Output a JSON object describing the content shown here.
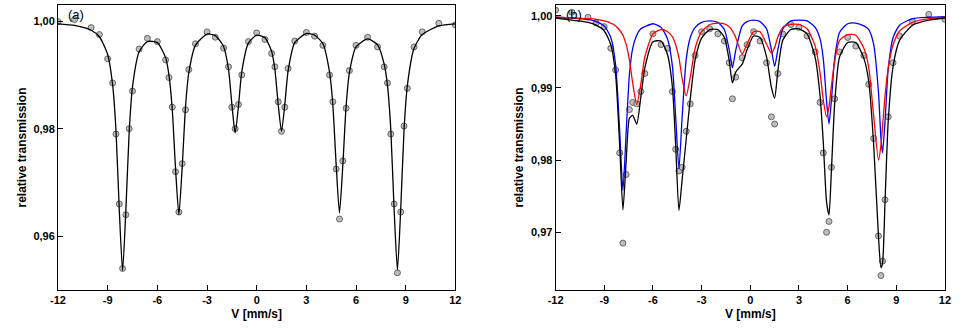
{
  "chart_data": [
    {
      "type": "scatter",
      "annotations": [
        "(a)"
      ],
      "x_label": "V [mm/s]",
      "y_label": "relative transmission",
      "xlim": [
        -12,
        12
      ],
      "xticks": [
        -12,
        -9,
        -6,
        -3,
        0,
        3,
        6,
        9,
        12
      ],
      "ylim": [
        0.95,
        1.003
      ],
      "yticks": [
        {
          "value": 0.96,
          "label": "0,96"
        },
        {
          "value": 0.98,
          "label": "0,98"
        },
        {
          "value": 1.0,
          "label": "1,00"
        }
      ],
      "series": [
        {
          "type": "scatter",
          "marker": "circle",
          "color": "#bdbdbd",
          "x": [
            -12,
            -11,
            -10,
            -9.5,
            -9,
            -8.7,
            -8.5,
            -8.3,
            -8.1,
            -7.9,
            -7.7,
            -7.5,
            -7.1,
            -6.6,
            -6,
            -5.5,
            -5.3,
            -5.1,
            -4.9,
            -4.7,
            -4.5,
            -4.3,
            -4.1,
            -3.7,
            -3,
            -2.5,
            -2,
            -1.7,
            -1.5,
            -1.3,
            -1.1,
            -0.9,
            -0.5,
            0,
            0.5,
            0.9,
            1.1,
            1.3,
            1.5,
            1.7,
            1.9,
            2.3,
            3,
            3.5,
            4,
            4.4,
            4.6,
            4.8,
            5.0,
            5.2,
            5.4,
            5.6,
            6,
            6.7,
            7.3,
            7.7,
            7.9,
            8.1,
            8.3,
            8.5,
            8.7,
            8.9,
            9.1,
            9.5,
            10,
            11,
            12
          ],
          "values": [
            0.9999,
            1.0003,
            0.9988,
            0.9975,
            0.993,
            0.9885,
            0.979,
            0.966,
            0.954,
            0.964,
            0.98,
            0.987,
            0.9948,
            0.9968,
            0.9962,
            0.9928,
            0.9895,
            0.984,
            0.972,
            0.9645,
            0.9735,
            0.9835,
            0.991,
            0.9958,
            0.998,
            0.997,
            0.995,
            0.9915,
            0.984,
            0.98,
            0.9845,
            0.99,
            0.9962,
            0.9978,
            0.9966,
            0.994,
            0.9915,
            0.985,
            0.9795,
            0.984,
            0.9912,
            0.9963,
            0.9979,
            0.9972,
            0.9955,
            0.99,
            0.985,
            0.9725,
            0.9632,
            0.974,
            0.9838,
            0.9908,
            0.9955,
            0.997,
            0.9952,
            0.9915,
            0.9885,
            0.979,
            0.966,
            0.9532,
            0.9645,
            0.9805,
            0.9875,
            0.9952,
            0.998,
            0.9996,
            0.9993
          ]
        },
        {
          "type": "line",
          "line_style": "solid",
          "color": "#000000",
          "x": [
            -12,
            -11,
            -10,
            -9.5,
            -9,
            -8.7,
            -8.5,
            -8.3,
            -8.1,
            -7.9,
            -7.7,
            -7.5,
            -7.1,
            -6.6,
            -6,
            -5.5,
            -5.3,
            -5.1,
            -4.9,
            -4.7,
            -4.5,
            -4.3,
            -4.1,
            -3.7,
            -3,
            -2.5,
            -2,
            -1.7,
            -1.5,
            -1.3,
            -1.1,
            -0.9,
            -0.5,
            0,
            0.5,
            0.9,
            1.1,
            1.3,
            1.5,
            1.7,
            1.9,
            2.3,
            3,
            3.5,
            4,
            4.4,
            4.6,
            4.8,
            5.0,
            5.2,
            5.4,
            5.6,
            6,
            6.7,
            7.3,
            7.7,
            7.9,
            8.1,
            8.3,
            8.5,
            8.7,
            8.9,
            9.1,
            9.5,
            10,
            11,
            12
          ],
          "values": [
            0.9995,
            0.9992,
            0.9983,
            0.9971,
            0.9938,
            0.9881,
            0.9798,
            0.965,
            0.9536,
            0.9649,
            0.9795,
            0.9878,
            0.9943,
            0.9962,
            0.996,
            0.9932,
            0.99,
            0.9836,
            0.9725,
            0.964,
            0.9728,
            0.984,
            0.9904,
            0.9955,
            0.9976,
            0.9973,
            0.9953,
            0.991,
            0.9846,
            0.9792,
            0.9842,
            0.9906,
            0.9959,
            0.9974,
            0.9969,
            0.9944,
            0.991,
            0.9845,
            0.9795,
            0.9846,
            0.9908,
            0.996,
            0.9977,
            0.9974,
            0.9958,
            0.9905,
            0.9844,
            0.9733,
            0.9643,
            0.9731,
            0.9842,
            0.9904,
            0.9952,
            0.9967,
            0.9956,
            0.992,
            0.988,
            0.9798,
            0.965,
            0.9537,
            0.9651,
            0.9798,
            0.988,
            0.9949,
            0.9975,
            0.9991,
            0.9995
          ]
        }
      ]
    },
    {
      "type": "scatter",
      "annotations": [
        "(b)"
      ],
      "x_label": "V [mm/s]",
      "y_label": "relative transmission",
      "xlim": [
        -12,
        12
      ],
      "xticks": [
        -12,
        -9,
        -6,
        -3,
        0,
        3,
        6,
        9,
        12
      ],
      "ylim": [
        0.962,
        1.0015
      ],
      "yticks": [
        {
          "value": 0.97,
          "label": "0,97"
        },
        {
          "value": 0.98,
          "label": "0,98"
        },
        {
          "value": 0.99,
          "label": "0,99"
        },
        {
          "value": 1.0,
          "label": "1,00"
        }
      ],
      "series": [
        {
          "type": "scatter",
          "marker": "circle",
          "color": "#bdbdbd",
          "x": [
            -12,
            -11,
            -10,
            -9.5,
            -9,
            -8.6,
            -8.3,
            -8.05,
            -7.85,
            -7.65,
            -7.45,
            -7.25,
            -7.0,
            -6.75,
            -6.5,
            -6,
            -5.5,
            -5.1,
            -4.8,
            -4.6,
            -4.4,
            -4.2,
            -3.95,
            -3.7,
            -3.4,
            -3,
            -2.5,
            -2,
            -1.6,
            -1.3,
            -1.1,
            -0.9,
            -0.5,
            -0.2,
            0.2,
            0.6,
            1.0,
            1.3,
            1.5,
            1.7,
            2.0,
            2.5,
            3,
            3.5,
            4,
            4.3,
            4.5,
            4.7,
            4.85,
            5.0,
            5.2,
            5.5,
            6,
            6.5,
            7,
            7.3,
            7.6,
            7.9,
            8.05,
            8.15,
            8.3,
            8.5,
            8.8,
            9.2,
            10,
            11,
            12
          ],
          "values": [
            1.0008,
            1.0005,
            0.9998,
            0.999,
            0.9985,
            0.9955,
            0.9925,
            0.981,
            0.9685,
            0.978,
            0.987,
            0.988,
            0.9878,
            0.9895,
            0.992,
            0.9975,
            0.996,
            0.9955,
            0.9895,
            0.9815,
            0.9785,
            0.979,
            0.984,
            0.9878,
            0.9945,
            0.9978,
            0.9982,
            0.9975,
            0.9965,
            0.9935,
            0.9885,
            0.9915,
            0.9942,
            0.996,
            0.9978,
            0.9965,
            0.9935,
            0.986,
            0.985,
            0.992,
            0.9975,
            0.9988,
            0.9984,
            0.9972,
            0.995,
            0.988,
            0.981,
            0.97,
            0.9715,
            0.979,
            0.9885,
            0.995,
            0.997,
            0.9958,
            0.9945,
            0.9905,
            0.983,
            0.9695,
            0.964,
            0.966,
            0.9745,
            0.986,
            0.9935,
            0.9972,
            0.9992,
            1.0002,
            0.9995
          ]
        },
        {
          "type": "line",
          "line_style": "solid",
          "color": "#0000ff",
          "x": [
            -12,
            -11,
            -10,
            -9.5,
            -9,
            -8.6,
            -8.3,
            -8.05,
            -7.85,
            -7.65,
            -7.45,
            -7.25,
            -7.0,
            -6.75,
            -6.5,
            -6,
            -5.5,
            -5.1,
            -4.8,
            -4.6,
            -4.4,
            -4.2,
            -3.95,
            -3.7,
            -3.4,
            -3,
            -2.5,
            -2,
            -1.6,
            -1.3,
            -1.1,
            -0.9,
            -0.5,
            -0.2,
            0.2,
            0.6,
            1.0,
            1.3,
            1.5,
            1.7,
            2.0,
            2.5,
            3,
            3.5,
            4,
            4.3,
            4.5,
            4.7,
            4.85,
            5.0,
            5.2,
            5.5,
            6,
            6.5,
            7,
            7.3,
            7.6,
            7.9,
            8.05,
            8.15,
            8.3,
            8.5,
            8.8,
            9.2,
            10,
            11,
            12
          ],
          "values": [
            0.9998,
            0.9997,
            0.9995,
            0.9992,
            0.9986,
            0.997,
            0.9932,
            0.984,
            0.9758,
            0.9839,
            0.9919,
            0.9955,
            0.9973,
            0.9982,
            0.9985,
            0.9989,
            0.9984,
            0.9968,
            0.993,
            0.986,
            0.9788,
            0.986,
            0.994,
            0.997,
            0.9984,
            0.9991,
            0.9993,
            0.9991,
            0.9981,
            0.9953,
            0.9928,
            0.9952,
            0.9986,
            0.9992,
            0.9994,
            0.9992,
            0.9982,
            0.9953,
            0.993,
            0.9953,
            0.9982,
            0.9993,
            0.9994,
            0.9993,
            0.9984,
            0.9968,
            0.994,
            0.9882,
            0.985,
            0.9883,
            0.9941,
            0.9977,
            0.9989,
            0.999,
            0.9986,
            0.9981,
            0.9961,
            0.9894,
            0.9831,
            0.981,
            0.9852,
            0.9926,
            0.997,
            0.9987,
            0.9996,
            0.9998,
            0.9999
          ]
        },
        {
          "type": "line",
          "line_style": "solid",
          "color": "#ff0000",
          "x": [
            -12,
            -11,
            -10,
            -9.5,
            -9,
            -8.6,
            -8.3,
            -8.05,
            -7.85,
            -7.65,
            -7.45,
            -7.25,
            -7.0,
            -6.75,
            -6.5,
            -6,
            -5.5,
            -5.1,
            -4.8,
            -4.6,
            -4.4,
            -4.2,
            -3.95,
            -3.7,
            -3.4,
            -3,
            -2.5,
            -2,
            -1.6,
            -1.3,
            -1.1,
            -0.9,
            -0.5,
            -0.2,
            0.2,
            0.6,
            1.0,
            1.3,
            1.5,
            1.7,
            2.0,
            2.5,
            3,
            3.5,
            4,
            4.3,
            4.5,
            4.7,
            4.85,
            5.0,
            5.2,
            5.5,
            6,
            6.5,
            7,
            7.3,
            7.6,
            7.9,
            8.05,
            8.15,
            8.3,
            8.5,
            8.8,
            9.2,
            10,
            11,
            12
          ],
          "values": [
            0.9998,
            0.9997,
            0.9996,
            0.9995,
            0.9993,
            0.999,
            0.9986,
            0.998,
            0.9973,
            0.996,
            0.9939,
            0.9907,
            0.9877,
            0.9905,
            0.9943,
            0.9975,
            0.9981,
            0.9978,
            0.9971,
            0.996,
            0.9942,
            0.9913,
            0.9889,
            0.9915,
            0.9955,
            0.9978,
            0.9988,
            0.999,
            0.9989,
            0.9985,
            0.9979,
            0.997,
            0.9947,
            0.9961,
            0.9978,
            0.9978,
            0.9961,
            0.9948,
            0.9956,
            0.9971,
            0.9984,
            0.9988,
            0.9988,
            0.9982,
            0.9958,
            0.9921,
            0.9883,
            0.986,
            0.9874,
            0.9903,
            0.9937,
            0.9966,
            0.9974,
            0.9973,
            0.9955,
            0.9928,
            0.9862,
            0.98,
            0.982,
            0.9847,
            0.9888,
            0.9928,
            0.996,
            0.9979,
            0.9991,
            0.9996,
            0.9998
          ]
        },
        {
          "type": "line",
          "line_style": "solid",
          "color": "#000000",
          "x": [
            -12,
            -11,
            -10,
            -9.5,
            -9,
            -8.6,
            -8.3,
            -8.05,
            -7.85,
            -7.65,
            -7.45,
            -7.25,
            -7.0,
            -6.75,
            -6.5,
            -6,
            -5.5,
            -5.1,
            -4.8,
            -4.6,
            -4.4,
            -4.2,
            -3.95,
            -3.7,
            -3.4,
            -3,
            -2.5,
            -2,
            -1.6,
            -1.3,
            -1.1,
            -0.9,
            -0.5,
            -0.2,
            0.2,
            0.6,
            1.0,
            1.3,
            1.5,
            1.7,
            2.0,
            2.5,
            3,
            3.5,
            4,
            4.3,
            4.5,
            4.7,
            4.85,
            5.0,
            5.2,
            5.5,
            6,
            6.5,
            7,
            7.3,
            7.6,
            7.9,
            8.05,
            8.15,
            8.3,
            8.5,
            8.8,
            9.2,
            10,
            11,
            12
          ],
          "values": [
            0.9997,
            0.9994,
            0.9991,
            0.9987,
            0.9979,
            0.996,
            0.9918,
            0.982,
            0.9731,
            0.9799,
            0.9858,
            0.9862,
            0.985,
            0.9887,
            0.9928,
            0.9964,
            0.9965,
            0.9946,
            0.9901,
            0.9821,
            0.973,
            0.9773,
            0.9829,
            0.9885,
            0.9939,
            0.9969,
            0.9981,
            0.9981,
            0.997,
            0.9938,
            0.9907,
            0.9922,
            0.9933,
            0.9953,
            0.9972,
            0.997,
            0.9943,
            0.9901,
            0.9886,
            0.9924,
            0.9966,
            0.9981,
            0.9982,
            0.9975,
            0.9942,
            0.9889,
            0.9824,
            0.9742,
            0.9724,
            0.9786,
            0.9878,
            0.9943,
            0.9963,
            0.9963,
            0.9941,
            0.9909,
            0.9823,
            0.9694,
            0.9651,
            0.9657,
            0.974,
            0.9854,
            0.993,
            0.9966,
            0.9987,
            0.9994,
            0.9997
          ]
        }
      ]
    }
  ]
}
